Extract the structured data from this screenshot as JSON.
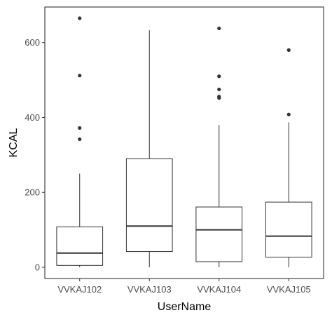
{
  "chart_data": {
    "type": "boxplot",
    "title": "",
    "xlabel": "UserName",
    "ylabel": "KCAL",
    "ylim": [
      -30,
      695
    ],
    "yticks": [
      0,
      200,
      400,
      600
    ],
    "grid": false,
    "legend": "none",
    "colors": {
      "box_fill": "#ffffff",
      "stroke": "#333333",
      "outlier": "#333333",
      "panel_border": "#333333"
    },
    "categories": [
      "VVKAJ102",
      "VVKAJ103",
      "VVKAJ104",
      "VVKAJ105"
    ],
    "boxes": [
      {
        "category": "VVKAJ102",
        "whisker_low": 0,
        "q1": 5,
        "median": 38,
        "q3": 108,
        "whisker_high": 250,
        "outliers": [
          342,
          372,
          512,
          665
        ]
      },
      {
        "category": "VVKAJ103",
        "whisker_low": 0,
        "q1": 42,
        "median": 110,
        "q3": 290,
        "whisker_high": 633,
        "outliers": []
      },
      {
        "category": "VVKAJ104",
        "whisker_low": 0,
        "q1": 15,
        "median": 100,
        "q3": 161,
        "whisker_high": 380,
        "outliers": [
          452,
          456,
          475,
          510,
          638
        ]
      },
      {
        "category": "VVKAJ105",
        "whisker_low": 0,
        "q1": 27,
        "median": 83,
        "q3": 174,
        "whisker_high": 387,
        "outliers": [
          408,
          580
        ]
      }
    ]
  }
}
